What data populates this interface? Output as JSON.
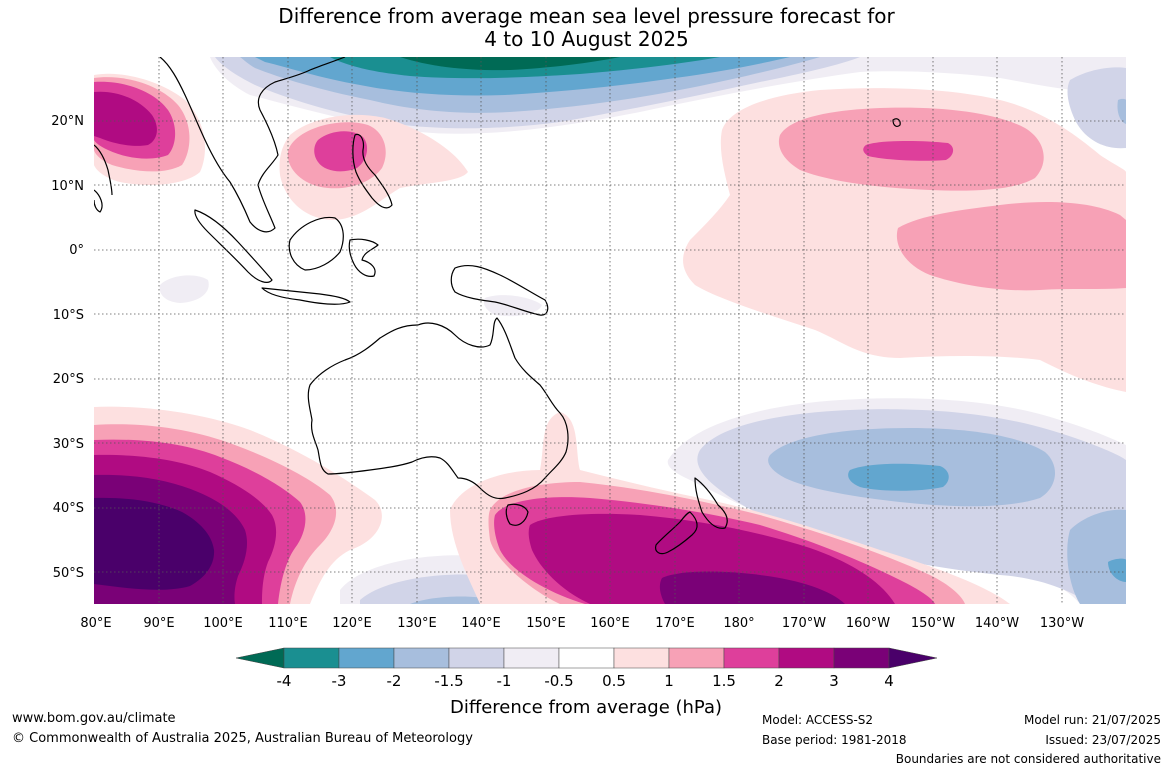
{
  "title": {
    "line1": "Difference from average mean sea level pressure forecast for",
    "line2": "4 to 10 August 2025"
  },
  "axes": {
    "lat_labels": [
      "20°N",
      "10°N",
      "0°",
      "10°S",
      "20°S",
      "30°S",
      "40°S",
      "50°S"
    ],
    "lon_labels": [
      "80°E",
      "90°E",
      "100°E",
      "110°E",
      "120°E",
      "130°E",
      "140°E",
      "150°E",
      "160°E",
      "170°E",
      "180°",
      "170°W",
      "160°W",
      "150°W",
      "140°W",
      "130°W"
    ]
  },
  "colorbar": {
    "label": "Difference from average (hPa)",
    "tick_labels": [
      "-4",
      "-3",
      "-2",
      "-1.5",
      "-1",
      "-0.5",
      "0.5",
      "1",
      "1.5",
      "2",
      "3",
      "4"
    ],
    "colors": {
      "under": "#006a55",
      "bins": [
        "#1a8f91",
        "#62a6cf",
        "#a7bedd",
        "#d1d4e8",
        "#f0edf4",
        "#ffffff",
        "#fde0e0",
        "#f7a1b6",
        "#de3f9b",
        "#b00b82",
        "#7a0177"
      ],
      "over": "#4a006a"
    }
  },
  "footer": {
    "website": "www.bom.gov.au/climate",
    "copyright": "© Commonwealth of Australia 2025, Australian Bureau of Meteorology",
    "model": "Model: ACCESS-S2",
    "base_period": "Base period: 1981-2018",
    "model_run": "Model run: 21/07/2025",
    "issued": "Issued: 23/07/2025",
    "disclaimer": "Boundaries are not considered authoritative"
  }
}
